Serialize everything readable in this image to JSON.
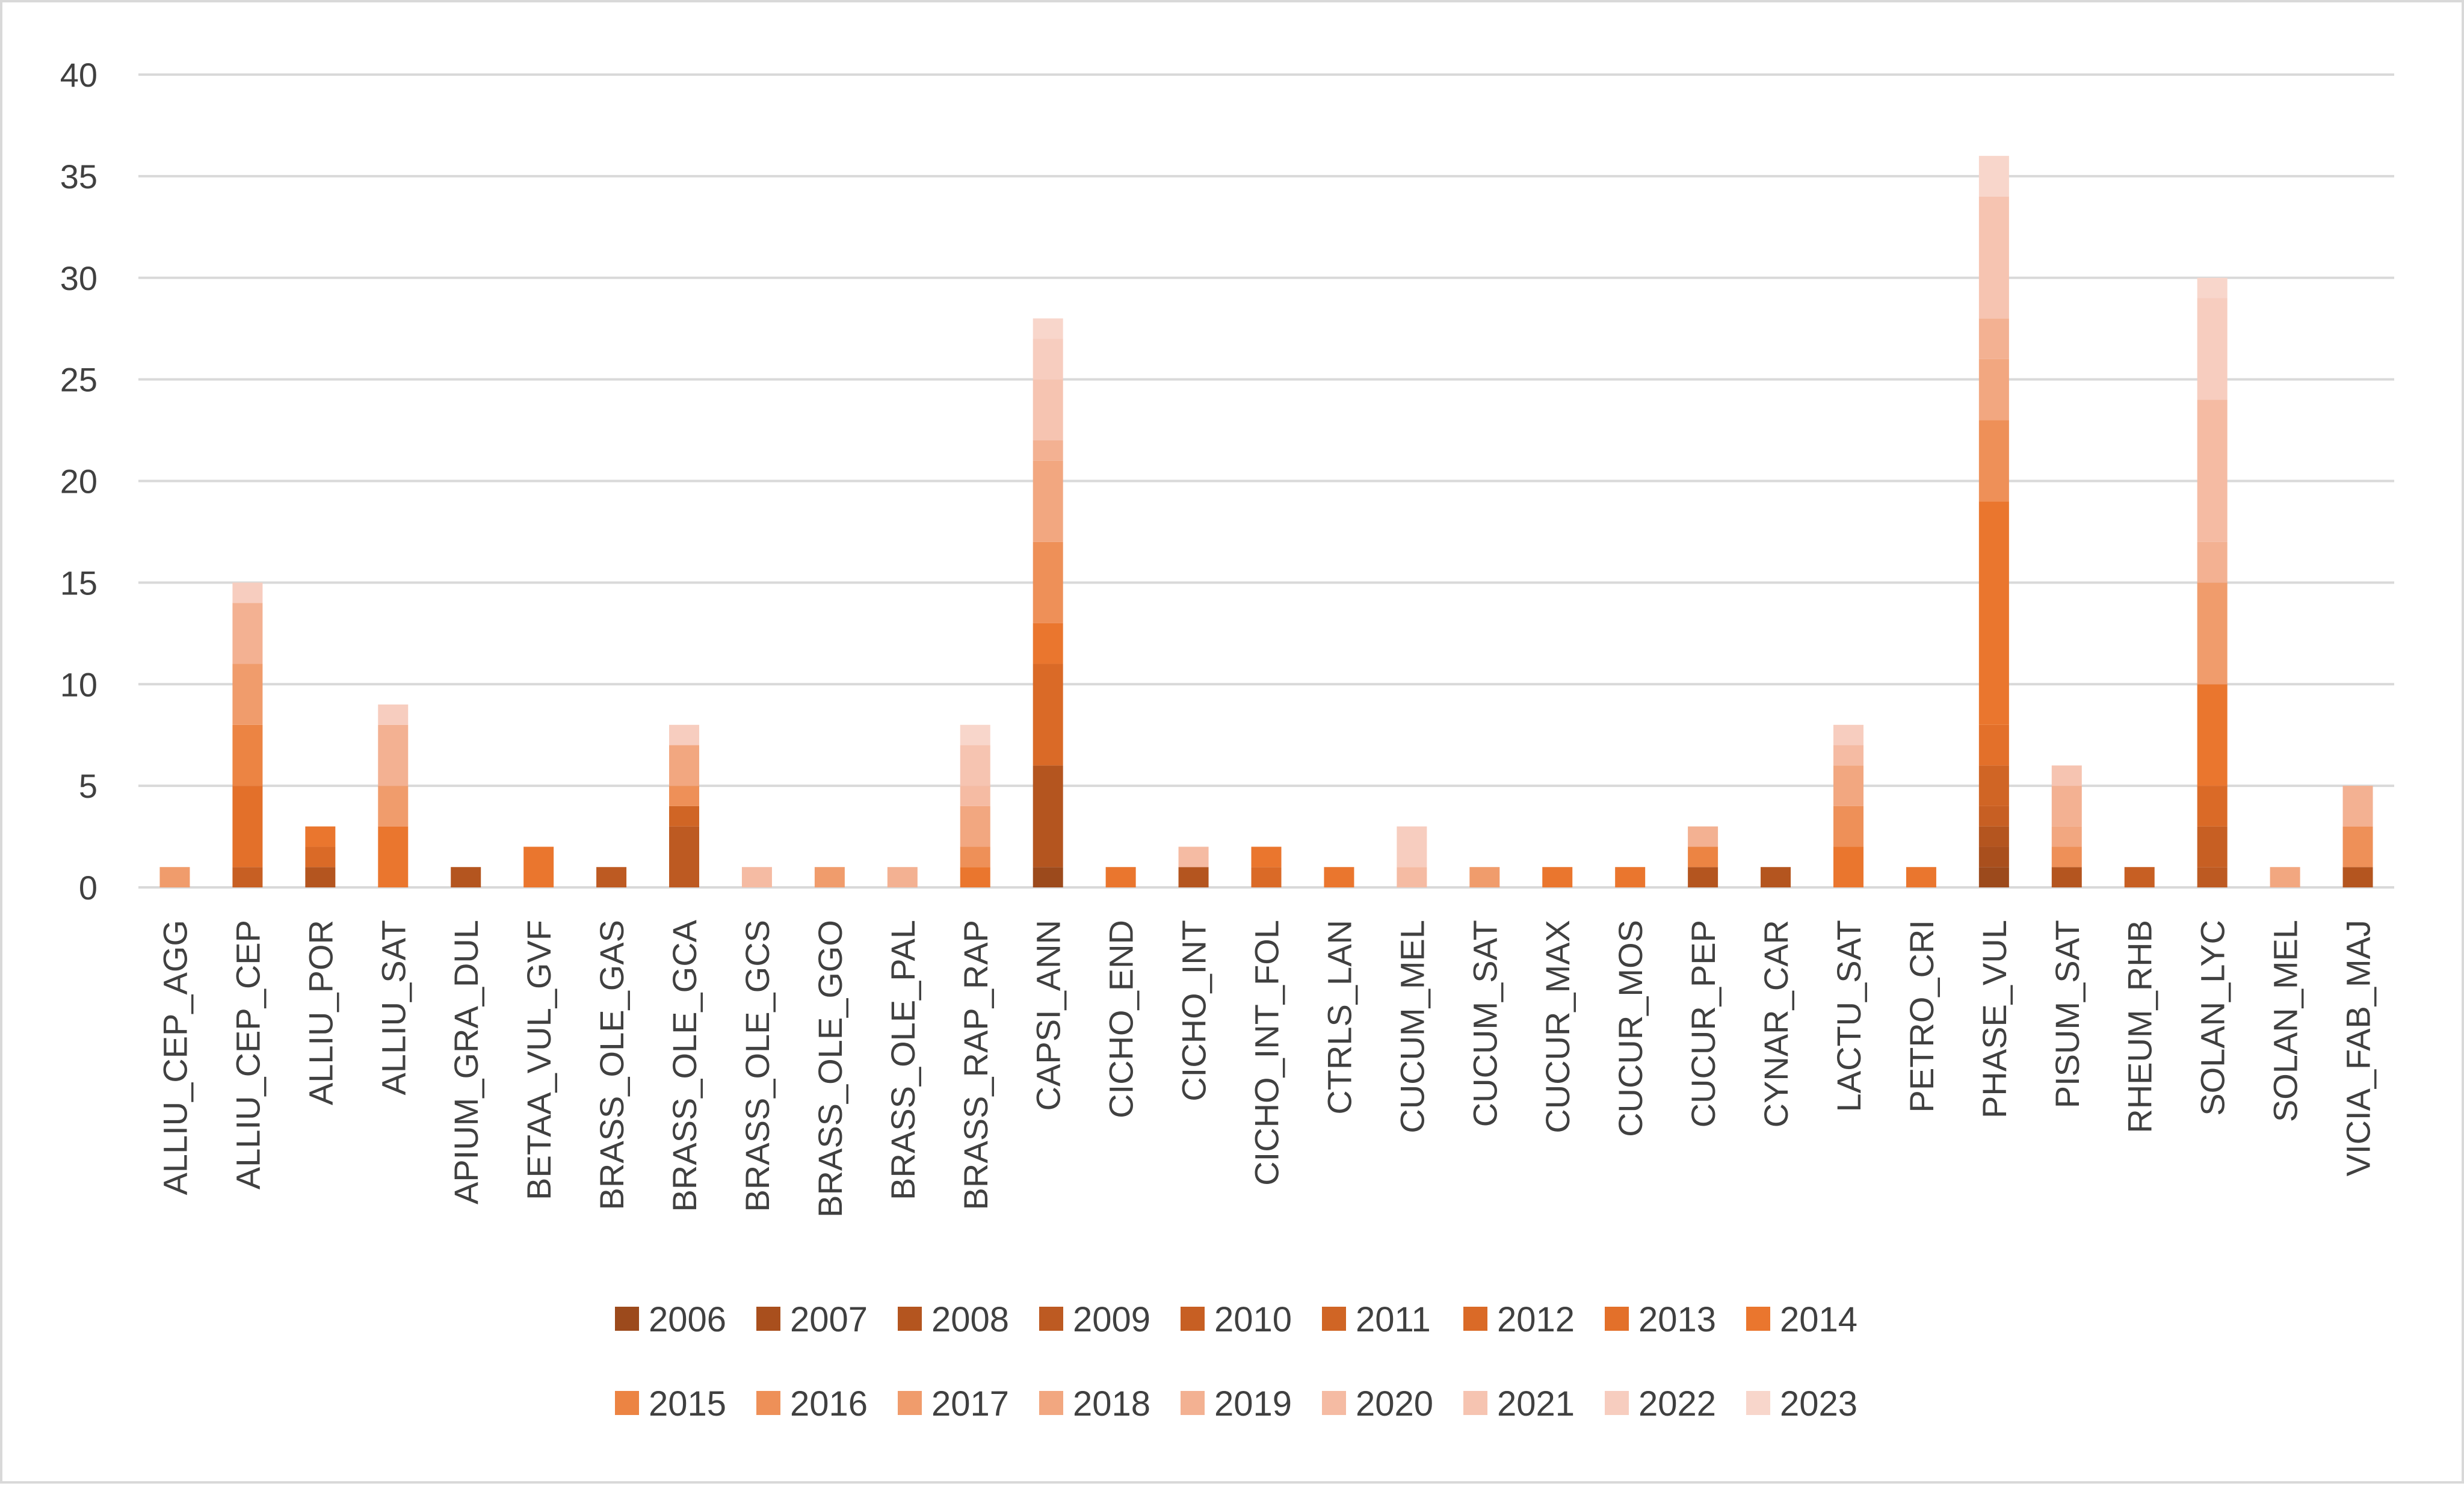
{
  "chart_data": {
    "type": "bar",
    "stacked": true,
    "title": "",
    "xlabel": "",
    "ylabel": "",
    "ylim": [
      0,
      40
    ],
    "yticks": [
      0,
      5,
      10,
      15,
      20,
      25,
      30,
      35,
      40
    ],
    "grid": true,
    "legend_position": "bottom",
    "categories": [
      "ALLIU_CEP_AGG",
      "ALLIU_CEP_CEP",
      "ALLIU_POR",
      "ALLIU_SAT",
      "APIUM_GRA_DUL",
      "BETAA_VUL_GVF",
      "BRASS_OLE_GAS",
      "BRASS_OLE_GCA",
      "BRASS_OLE_GCS",
      "BRASS_OLE_GGO",
      "BRASS_OLE_PAL",
      "BRASS_RAP_RAP",
      "CAPSI_ANN",
      "CICHO_END",
      "CICHO_INT",
      "CICHO_INT_FOL",
      "CTRLS_LAN",
      "CUCUM_MEL",
      "CUCUM_SAT",
      "CUCUR_MAX",
      "CUCUR_MOS",
      "CUCUR_PEP",
      "CYNAR_CAR",
      "LACTU_SAT",
      "PETRO_CRI",
      "PHASE_VUL",
      "PISUM_SAT",
      "RHEUM_RHB",
      "SOLAN_LYC",
      "SOLAN_MEL",
      "VICIA_FAB_MAJ"
    ],
    "series": [
      {
        "name": "2006",
        "color": "#9c4a1c",
        "values": [
          0,
          0,
          0,
          0,
          0,
          0,
          0,
          0,
          0,
          0,
          0,
          0,
          1,
          0,
          0,
          0,
          0,
          0,
          0,
          0,
          0,
          0,
          0,
          0,
          0,
          1,
          0,
          0,
          0,
          0,
          0
        ]
      },
      {
        "name": "2007",
        "color": "#a94f1d",
        "values": [
          0,
          0,
          0,
          0,
          0,
          0,
          0,
          0,
          0,
          0,
          0,
          0,
          0,
          0,
          0,
          0,
          0,
          0,
          0,
          0,
          0,
          0,
          0,
          0,
          0,
          1,
          0,
          0,
          0,
          0,
          0
        ]
      },
      {
        "name": "2008",
        "color": "#b4551f",
        "values": [
          0,
          0,
          1,
          0,
          1,
          0,
          0,
          0,
          0,
          0,
          0,
          0,
          5,
          0,
          1,
          0,
          0,
          0,
          0,
          0,
          0,
          1,
          1,
          0,
          0,
          1,
          1,
          0,
          0,
          0,
          1
        ]
      },
      {
        "name": "2009",
        "color": "#bd5a22",
        "values": [
          0,
          0,
          0,
          0,
          0,
          0,
          1,
          3,
          0,
          0,
          0,
          0,
          0,
          0,
          0,
          0,
          0,
          0,
          0,
          0,
          0,
          0,
          0,
          0,
          0,
          0,
          0,
          0,
          1,
          0,
          0
        ]
      },
      {
        "name": "2010",
        "color": "#c75f23",
        "values": [
          0,
          1,
          0,
          0,
          0,
          0,
          0,
          0,
          0,
          0,
          0,
          0,
          0,
          0,
          0,
          0,
          0,
          0,
          0,
          0,
          0,
          0,
          0,
          0,
          0,
          1,
          0,
          1,
          2,
          0,
          0
        ]
      },
      {
        "name": "2011",
        "color": "#d06525",
        "values": [
          0,
          0,
          0,
          0,
          0,
          0,
          0,
          1,
          0,
          0,
          0,
          0,
          0,
          0,
          0,
          0,
          0,
          0,
          0,
          0,
          0,
          0,
          0,
          0,
          0,
          2,
          0,
          0,
          0,
          0,
          0
        ]
      },
      {
        "name": "2012",
        "color": "#da6a27",
        "values": [
          0,
          0,
          1,
          0,
          0,
          0,
          0,
          0,
          0,
          0,
          0,
          0,
          5,
          0,
          0,
          1,
          0,
          0,
          0,
          0,
          0,
          0,
          0,
          0,
          0,
          0,
          0,
          0,
          2,
          0,
          0
        ]
      },
      {
        "name": "2013",
        "color": "#e3702a",
        "values": [
          0,
          4,
          0,
          0,
          0,
          0,
          0,
          0,
          0,
          0,
          0,
          0,
          0,
          0,
          0,
          0,
          0,
          0,
          0,
          0,
          0,
          0,
          0,
          0,
          0,
          2,
          0,
          0,
          0,
          0,
          0
        ]
      },
      {
        "name": "2014",
        "color": "#ea762e",
        "values": [
          0,
          0,
          1,
          3,
          0,
          2,
          0,
          0,
          0,
          0,
          0,
          1,
          2,
          1,
          0,
          1,
          1,
          0,
          0,
          1,
          1,
          0,
          0,
          2,
          1,
          11,
          0,
          0,
          5,
          0,
          0
        ]
      },
      {
        "name": "2015",
        "color": "#ec8443",
        "values": [
          0,
          3,
          0,
          0,
          0,
          0,
          0,
          0,
          0,
          0,
          0,
          0,
          0,
          0,
          0,
          0,
          0,
          0,
          0,
          0,
          0,
          1,
          0,
          0,
          0,
          0,
          0,
          0,
          0,
          0,
          0
        ]
      },
      {
        "name": "2016",
        "color": "#ee9058",
        "values": [
          0,
          0,
          0,
          0,
          0,
          0,
          0,
          1,
          0,
          0,
          0,
          1,
          4,
          0,
          0,
          0,
          0,
          0,
          0,
          0,
          0,
          0,
          0,
          2,
          0,
          4,
          1,
          0,
          0,
          0,
          2
        ]
      },
      {
        "name": "2017",
        "color": "#f09c6c",
        "values": [
          1,
          3,
          0,
          2,
          0,
          0,
          0,
          0,
          0,
          1,
          0,
          0,
          0,
          0,
          0,
          0,
          0,
          0,
          1,
          0,
          0,
          0,
          0,
          0,
          0,
          0,
          0,
          0,
          5,
          0,
          0
        ]
      },
      {
        "name": "2018",
        "color": "#f2a780",
        "values": [
          0,
          0,
          0,
          0,
          0,
          0,
          0,
          2,
          0,
          0,
          0,
          2,
          4,
          0,
          0,
          0,
          0,
          0,
          0,
          0,
          0,
          0,
          0,
          2,
          0,
          3,
          1,
          0,
          0,
          1,
          0
        ]
      },
      {
        "name": "2019",
        "color": "#f3b192",
        "values": [
          0,
          3,
          0,
          3,
          0,
          0,
          0,
          0,
          0,
          0,
          1,
          0,
          1,
          0,
          0,
          0,
          0,
          0,
          0,
          0,
          0,
          1,
          0,
          0,
          0,
          2,
          2,
          0,
          2,
          0,
          2
        ]
      },
      {
        "name": "2020",
        "color": "#f5bba3",
        "values": [
          0,
          0,
          0,
          0,
          0,
          0,
          0,
          0,
          1,
          0,
          0,
          1,
          0,
          0,
          1,
          0,
          0,
          1,
          0,
          0,
          0,
          0,
          0,
          1,
          0,
          0,
          0,
          0,
          7,
          0,
          0
        ]
      },
      {
        "name": "2021",
        "color": "#f6c4b1",
        "values": [
          0,
          0,
          0,
          0,
          0,
          0,
          0,
          0,
          0,
          0,
          0,
          2,
          3,
          0,
          0,
          0,
          0,
          0,
          0,
          0,
          0,
          0,
          0,
          0,
          0,
          6,
          1,
          0,
          0,
          0,
          0
        ]
      },
      {
        "name": "2022",
        "color": "#f7cdbf",
        "values": [
          0,
          1,
          0,
          1,
          0,
          0,
          0,
          1,
          0,
          0,
          0,
          0,
          2,
          0,
          0,
          0,
          0,
          2,
          0,
          0,
          0,
          0,
          0,
          1,
          0,
          0,
          0,
          0,
          5,
          0,
          0
        ]
      },
      {
        "name": "2023",
        "color": "#f8d6cb",
        "values": [
          0,
          0,
          0,
          0,
          0,
          0,
          0,
          0,
          0,
          0,
          0,
          1,
          1,
          0,
          0,
          0,
          0,
          0,
          0,
          0,
          0,
          0,
          0,
          0,
          0,
          2,
          0,
          0,
          1,
          0,
          0
        ]
      }
    ]
  }
}
